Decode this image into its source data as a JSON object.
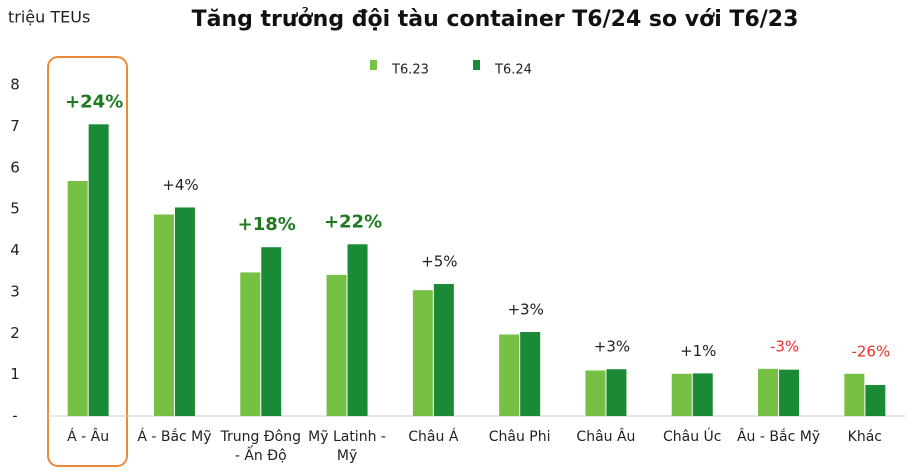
{
  "chart_data": {
    "type": "bar",
    "title": "Tăng trưởng đội tàu container T6/24 so với T6/23",
    "y_label": "triệu TEUs",
    "categories": [
      "Á - Âu",
      "Á - Bắc Mỹ",
      "Trung Đông - Ấn Độ",
      "Mỹ Latinh - Mỹ",
      "Châu Á",
      "Châu Phi",
      "Châu Âu",
      "Châu Úc",
      "Âu - Bắc Mỹ",
      "Khác"
    ],
    "series": [
      {
        "name": "T6.23",
        "color": "#76c043",
        "values": [
          5.68,
          4.87,
          3.47,
          3.41,
          3.04,
          1.97,
          1.1,
          1.02,
          1.14,
          1.02
        ]
      },
      {
        "name": "T6.24",
        "color": "#1a8a36",
        "values": [
          7.05,
          5.04,
          4.08,
          4.15,
          3.19,
          2.03,
          1.13,
          1.03,
          1.12,
          0.75
        ]
      }
    ],
    "growth_labels": [
      "+24%",
      "+4%",
      "+18%",
      "+22%",
      "+5%",
      "+3%",
      "+3%",
      "+1%",
      "-3%",
      "-26%"
    ],
    "growth_label_colors": [
      "#1f7a1f",
      "#222222",
      "#1f7a1f",
      "#1f7a1f",
      "#222222",
      "#222222",
      "#222222",
      "#222222",
      "#e8302a",
      "#e8302a"
    ],
    "growth_label_bold": [
      true,
      false,
      true,
      true,
      false,
      false,
      false,
      false,
      false,
      false
    ],
    "ylim": [
      0,
      8
    ],
    "yticks": [
      {
        "value": 0,
        "label": "-"
      },
      1,
      2,
      3,
      4,
      5,
      6,
      7,
      8
    ],
    "legend": "top",
    "grid": false
  }
}
